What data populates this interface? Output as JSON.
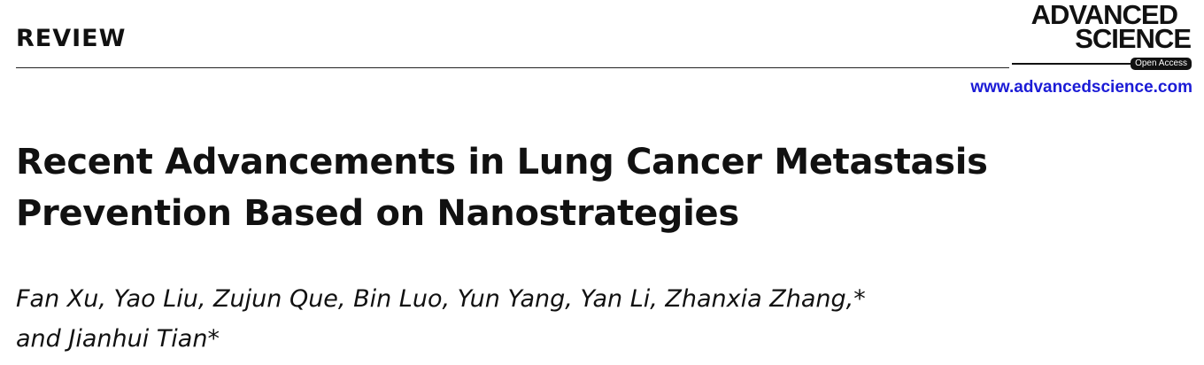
{
  "header": {
    "section": "REVIEW",
    "logo": [
      "ADVANCED",
      "SCIENCE"
    ],
    "badge": "Open Access",
    "url": "www.advancedscience.com"
  },
  "title": [
    "Recent Advancements in Lung Cancer Metastasis",
    "Prevention Based on Nanostrategies"
  ],
  "authors": [
    "Fan Xu, Yao Liu, Zujun Que, Bin Luo, Yun Yang, Yan Li, Zhanxia Zhang,*",
    "and Jianhui Tian*"
  ]
}
